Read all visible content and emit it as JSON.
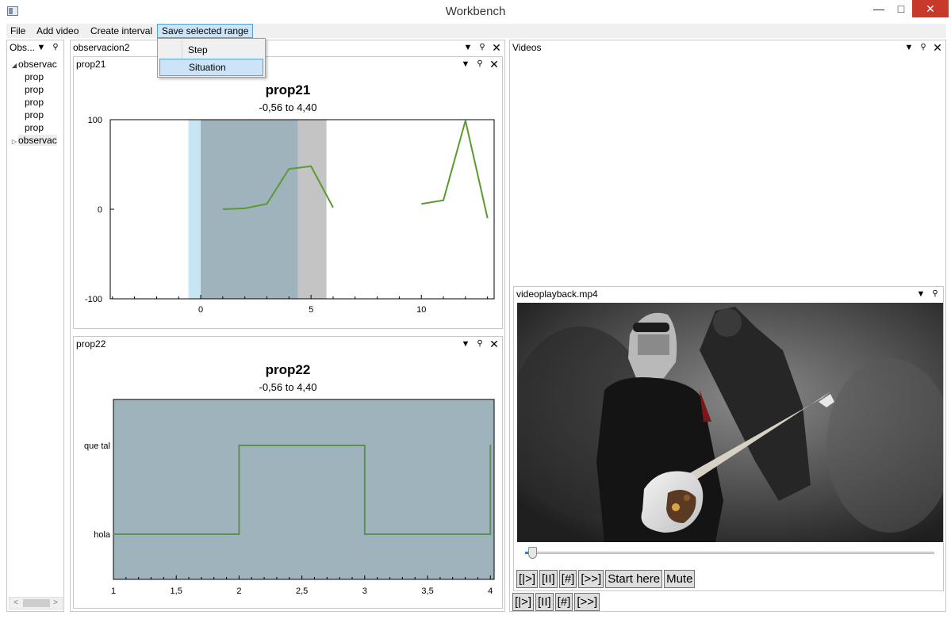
{
  "window": {
    "title": "Workbench",
    "minimize": "—",
    "maximize": "□",
    "close": "✕"
  },
  "menu": {
    "items": [
      "File",
      "Add video",
      "Create interval",
      "Save selected range"
    ],
    "dropdown": [
      "Step",
      "Situation"
    ]
  },
  "observations_pane": {
    "title": "Obs...",
    "tree": [
      {
        "label": "observac",
        "arrow": "◢",
        "indent": 0
      },
      {
        "label": "prop",
        "arrow": "",
        "indent": 1
      },
      {
        "label": "prop",
        "arrow": "",
        "indent": 1
      },
      {
        "label": "prop",
        "arrow": "",
        "indent": 1
      },
      {
        "label": "prop",
        "arrow": "",
        "indent": 1
      },
      {
        "label": "prop",
        "arrow": "",
        "indent": 1
      },
      {
        "label": "observac",
        "arrow": "▷",
        "indent": 0
      }
    ],
    "scroll_left": "<",
    "scroll_right": ">"
  },
  "observation_pane": {
    "title": "observacion2"
  },
  "videos_pane": {
    "title": "Videos"
  },
  "video_player": {
    "filename": "videoplayback.mp4",
    "progress": 0.015,
    "buttons": [
      "[|>]",
      "[II]",
      "[#]",
      "[>>]",
      "Start here",
      "Mute"
    ],
    "global_buttons": [
      "[|>]",
      "[II]",
      "[#]",
      "[>>]"
    ]
  },
  "pane_controls": {
    "dropdown": "▼",
    "pin": "📌",
    "close": "✕"
  },
  "colors": {
    "line": "#5a9a32",
    "selection_light": "#c6e6f3",
    "selection_dark": "#9fb3bc",
    "selection_gray": "#c4c4c4",
    "step_line": "#5d8f58"
  },
  "chart_data": [
    {
      "type": "line",
      "name": "prop21",
      "title": "prop21",
      "subtitle": "-0,56 to 4,40",
      "xlim": [
        -4.1,
        13.3
      ],
      "ylim": [
        -100,
        100
      ],
      "xticks": [
        0,
        5,
        10
      ],
      "xtick_labels": [
        "0",
        "5",
        "10"
      ],
      "yticks": [
        100,
        0,
        -100
      ],
      "ytick_labels": [
        "100",
        "0",
        "-100"
      ],
      "segments": [
        {
          "x": [
            1,
            2,
            3,
            4,
            5,
            6
          ],
          "y": [
            0,
            1,
            6,
            45,
            48,
            2
          ]
        },
        {
          "x": [
            10,
            11,
            12,
            13
          ],
          "y": [
            6,
            10,
            99,
            -10
          ]
        }
      ],
      "highlights": [
        {
          "from": -0.56,
          "to": 0,
          "kind": "light"
        },
        {
          "from": 0,
          "to": 4.4,
          "kind": "dark"
        },
        {
          "from": 4.4,
          "to": 5.7,
          "kind": "gray"
        }
      ]
    },
    {
      "type": "line",
      "name": "prop22",
      "title": "prop22",
      "subtitle": "-0,56 to 4,40",
      "xlim": [
        1,
        4.03
      ],
      "categories": [
        "hola",
        "que tal"
      ],
      "xticks": [
        1,
        1.5,
        2,
        2.5,
        3,
        3.5,
        4
      ],
      "xtick_labels": [
        "1",
        "1,5",
        "2",
        "2,5",
        "3",
        "3,5",
        "4"
      ],
      "steps": [
        {
          "x": 1,
          "y": "hola"
        },
        {
          "x": 2,
          "y": "que tal"
        },
        {
          "x": 3,
          "y": "hola"
        },
        {
          "x": 4,
          "y": "que tal"
        }
      ],
      "highlight": "full"
    }
  ]
}
